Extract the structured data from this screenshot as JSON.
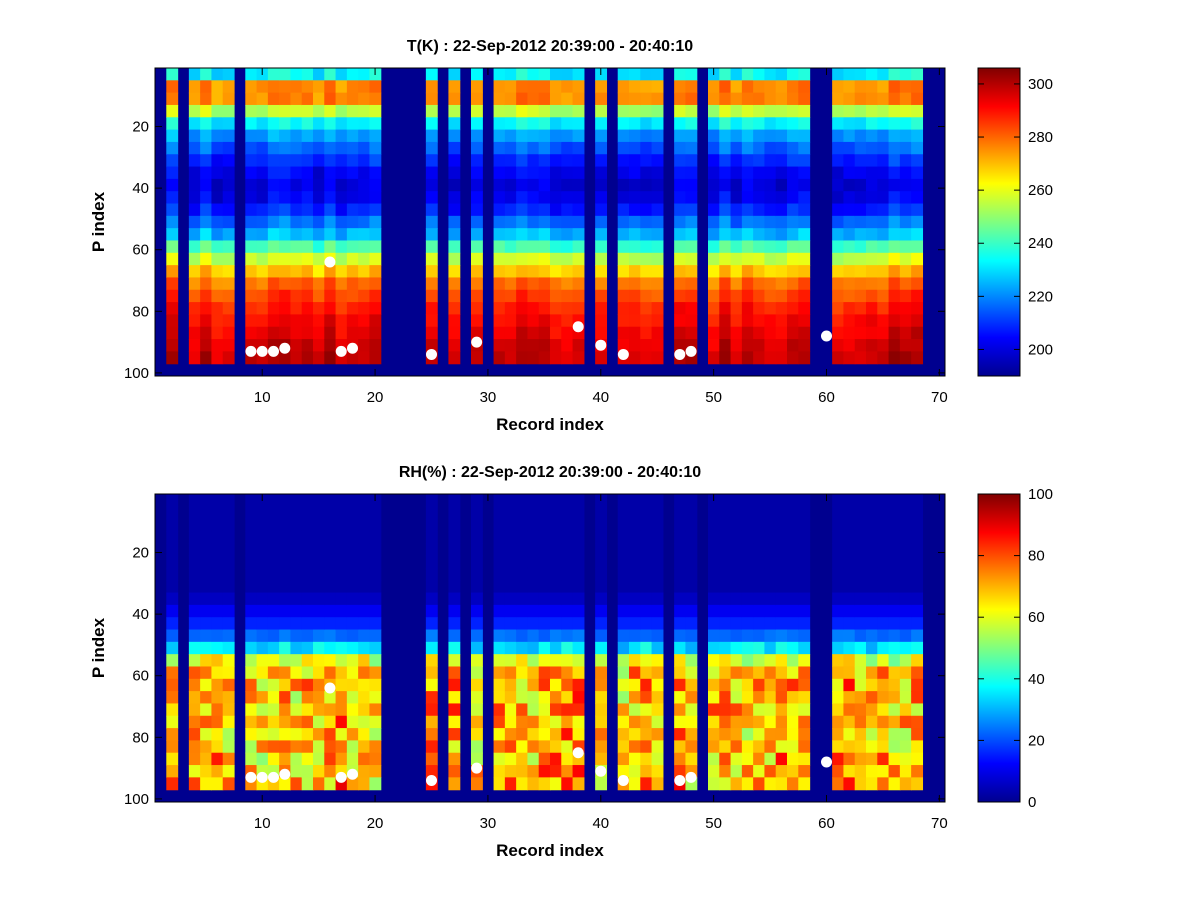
{
  "chart_data": [
    {
      "type": "heatmap",
      "title": "T(K) : 22-Sep-2012 20:39:00 - 20:40:10",
      "xlabel": "Record index",
      "ylabel": "P index",
      "xlim": [
        1,
        70
      ],
      "ylim": [
        1,
        101
      ],
      "y_reversed": true,
      "xticks": [
        10,
        20,
        30,
        40,
        50,
        60,
        70
      ],
      "yticks": [
        20,
        40,
        60,
        80,
        100
      ],
      "colormap": "jet",
      "clim": [
        190,
        306
      ],
      "colorbar_ticks": [
        200,
        220,
        240,
        260,
        280,
        300
      ],
      "missing_records": [
        1,
        3,
        8,
        21,
        22,
        23,
        24,
        26,
        28,
        30,
        39,
        41,
        46,
        49,
        59,
        60,
        69,
        70
      ],
      "valid_bottom_index": 97,
      "profile_by_p_index": {
        "p": [
          1,
          5,
          10,
          20,
          30,
          38,
          45,
          55,
          62,
          70,
          80,
          90,
          97
        ],
        "value": [
          194,
          272,
          282,
          228,
          210,
          200,
          204,
          226,
          254,
          278,
          290,
          296,
          300
        ]
      },
      "markers": {
        "record": [
          9,
          10,
          11,
          12,
          16,
          17,
          18,
          25,
          29,
          38,
          40,
          42,
          47,
          48,
          60
        ],
        "p": [
          93,
          93,
          93,
          92,
          64,
          93,
          92,
          94,
          90,
          85,
          91,
          94,
          94,
          93,
          88
        ]
      }
    },
    {
      "type": "heatmap",
      "title": "RH(%) : 22-Sep-2012 20:39:00 - 20:40:10",
      "xlabel": "Record index",
      "ylabel": "P index",
      "xlim": [
        1,
        70
      ],
      "ylim": [
        1,
        101
      ],
      "y_reversed": true,
      "xticks": [
        10,
        20,
        30,
        40,
        50,
        60,
        70
      ],
      "yticks": [
        20,
        40,
        60,
        80,
        100
      ],
      "colormap": "jet",
      "clim": [
        0,
        100
      ],
      "colorbar_ticks": [
        0,
        20,
        40,
        60,
        80,
        100
      ],
      "missing_records": [
        1,
        3,
        8,
        21,
        22,
        23,
        24,
        26,
        28,
        30,
        39,
        41,
        46,
        49,
        59,
        60,
        69,
        70
      ],
      "valid_bottom_index": 97,
      "profile_by_p_index": {
        "p": [
          1,
          33,
          38,
          45,
          50,
          55,
          60,
          70,
          80,
          90,
          97
        ],
        "value": [
          4,
          4,
          10,
          18,
          30,
          60,
          72,
          70,
          68,
          70,
          72
        ]
      },
      "markers": {
        "record": [
          9,
          10,
          11,
          12,
          16,
          17,
          18,
          25,
          29,
          38,
          40,
          42,
          47,
          48,
          60
        ],
        "p": [
          93,
          93,
          93,
          92,
          64,
          93,
          92,
          94,
          90,
          85,
          91,
          94,
          94,
          93,
          88
        ]
      }
    }
  ],
  "colors": {
    "missing": "#00008f",
    "marker": "#ffffff"
  }
}
